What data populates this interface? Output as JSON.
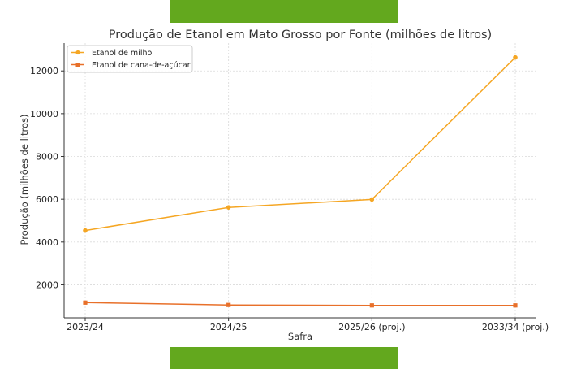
{
  "colors": {
    "accent_band": "#63a81e",
    "series_milho": "#f5a623",
    "series_cana": "#e8702a",
    "grid": "#d9d9d9"
  },
  "chart_data": {
    "type": "line",
    "title": "Produção de Etanol em Mato Grosso por Fonte (milhões de litros)",
    "xlabel": "Safra",
    "ylabel": "Produção (milhões de litros)",
    "categories": [
      "2023/24",
      "2024/25",
      "2025/26 (proj.)",
      "2033/34 (proj.)"
    ],
    "series": [
      {
        "name": "Etanol de milho",
        "values": [
          4540,
          5620,
          5990,
          12630
        ],
        "color": "#f5a623",
        "marker": "circle"
      },
      {
        "name": "Etanol de cana-de-açúcar",
        "values": [
          1170,
          1060,
          1040,
          1040
        ],
        "color": "#e8702a",
        "marker": "square"
      }
    ],
    "yticks": [
      2000,
      4000,
      6000,
      8000,
      10000,
      12000
    ],
    "ylim": [
      460,
      13300
    ],
    "grid": true,
    "legend_position": "top-left"
  }
}
